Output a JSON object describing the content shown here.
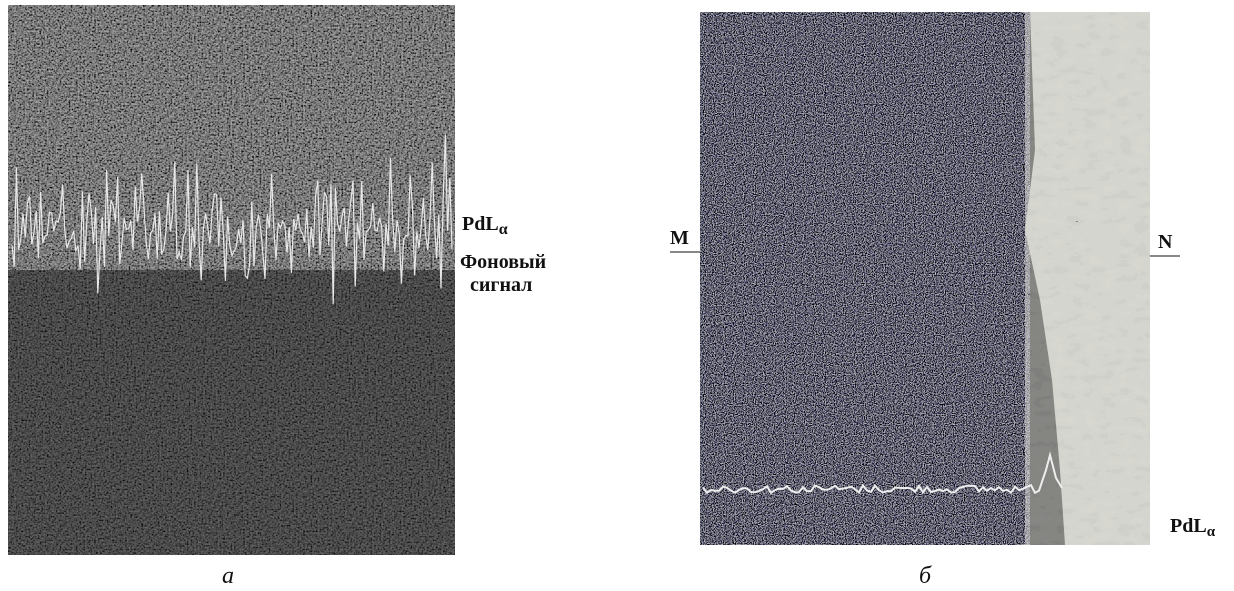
{
  "panels": [
    {
      "caption": "а",
      "annotations": [
        {
          "text": "PdL",
          "sub": "α"
        },
        {
          "lines": [
            "Фоновый",
            "сигнал"
          ]
        }
      ]
    },
    {
      "caption": "б",
      "markers": [
        "M",
        "N"
      ],
      "annotations": [
        {
          "text": "PdL",
          "sub": "α"
        }
      ]
    }
  ]
}
